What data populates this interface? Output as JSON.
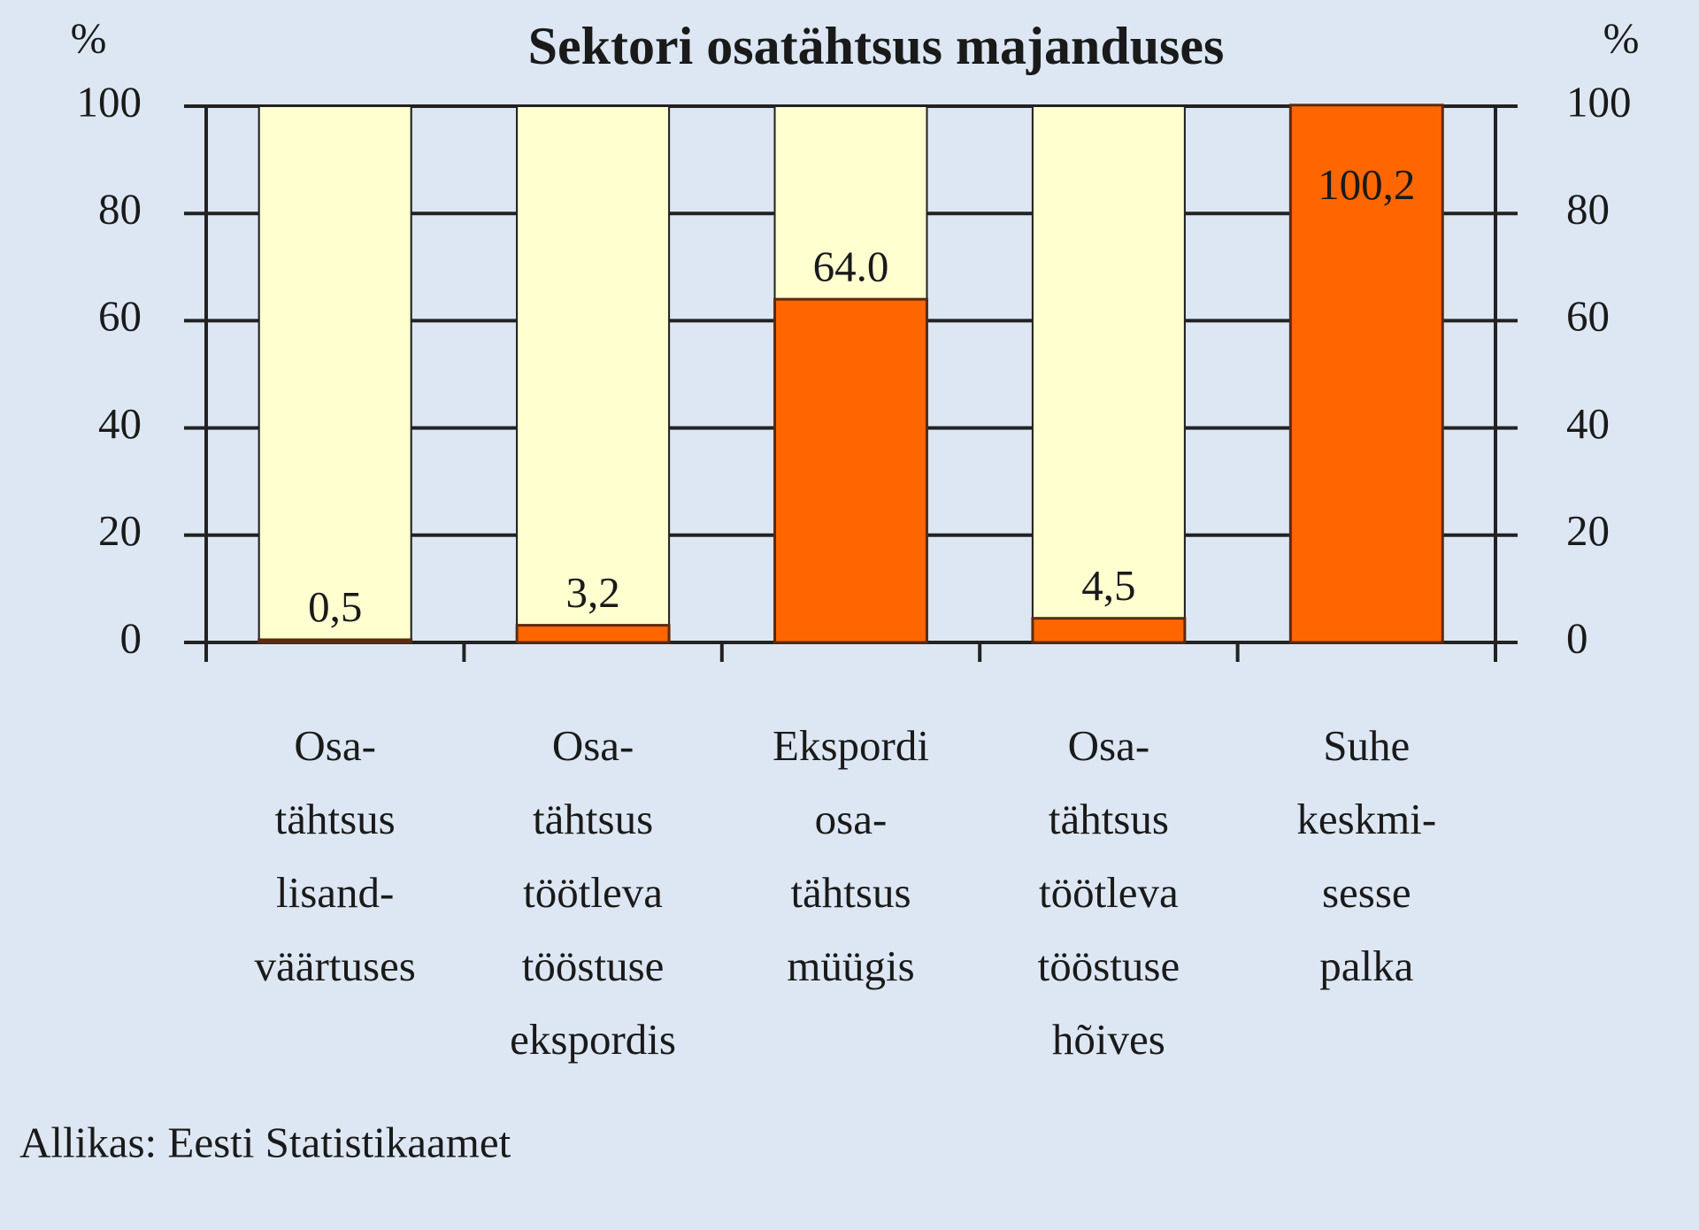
{
  "chart_data": {
    "type": "bar",
    "title": "Sektori osatähtsus majanduses",
    "y_label": "%",
    "y2_label": "%",
    "categories": [
      [
        "Osa-",
        "tähtsus",
        "lisand-",
        "väärtuses"
      ],
      [
        "Osa-",
        "tähtsus",
        "töötleva",
        "tööstuse",
        "ekspordis"
      ],
      [
        "Ekspordi",
        "osa-",
        "tähtsus",
        "müügis"
      ],
      [
        "Osa-",
        "tähtsus",
        "töötleva",
        "tööstuse",
        "hõives"
      ],
      [
        "Suhe",
        "keskmi-",
        "sesse",
        "palka"
      ]
    ],
    "values": [
      0.5,
      3.2,
      64.0,
      4.5,
      100.2
    ],
    "value_labels": [
      "0,5",
      "3,2",
      "64.0",
      "4,5",
      "100,2"
    ],
    "color": "#ff6600",
    "background_color": "#ffffd0",
    "ylim": [
      0,
      100
    ],
    "yticks": [
      0,
      20,
      40,
      60,
      80,
      100
    ],
    "y2lim": [
      0,
      100
    ],
    "y2ticks": [
      0,
      20,
      40,
      60,
      80,
      100
    ],
    "grid": true,
    "source": "Allikas: Eesti Statistikaamet"
  }
}
